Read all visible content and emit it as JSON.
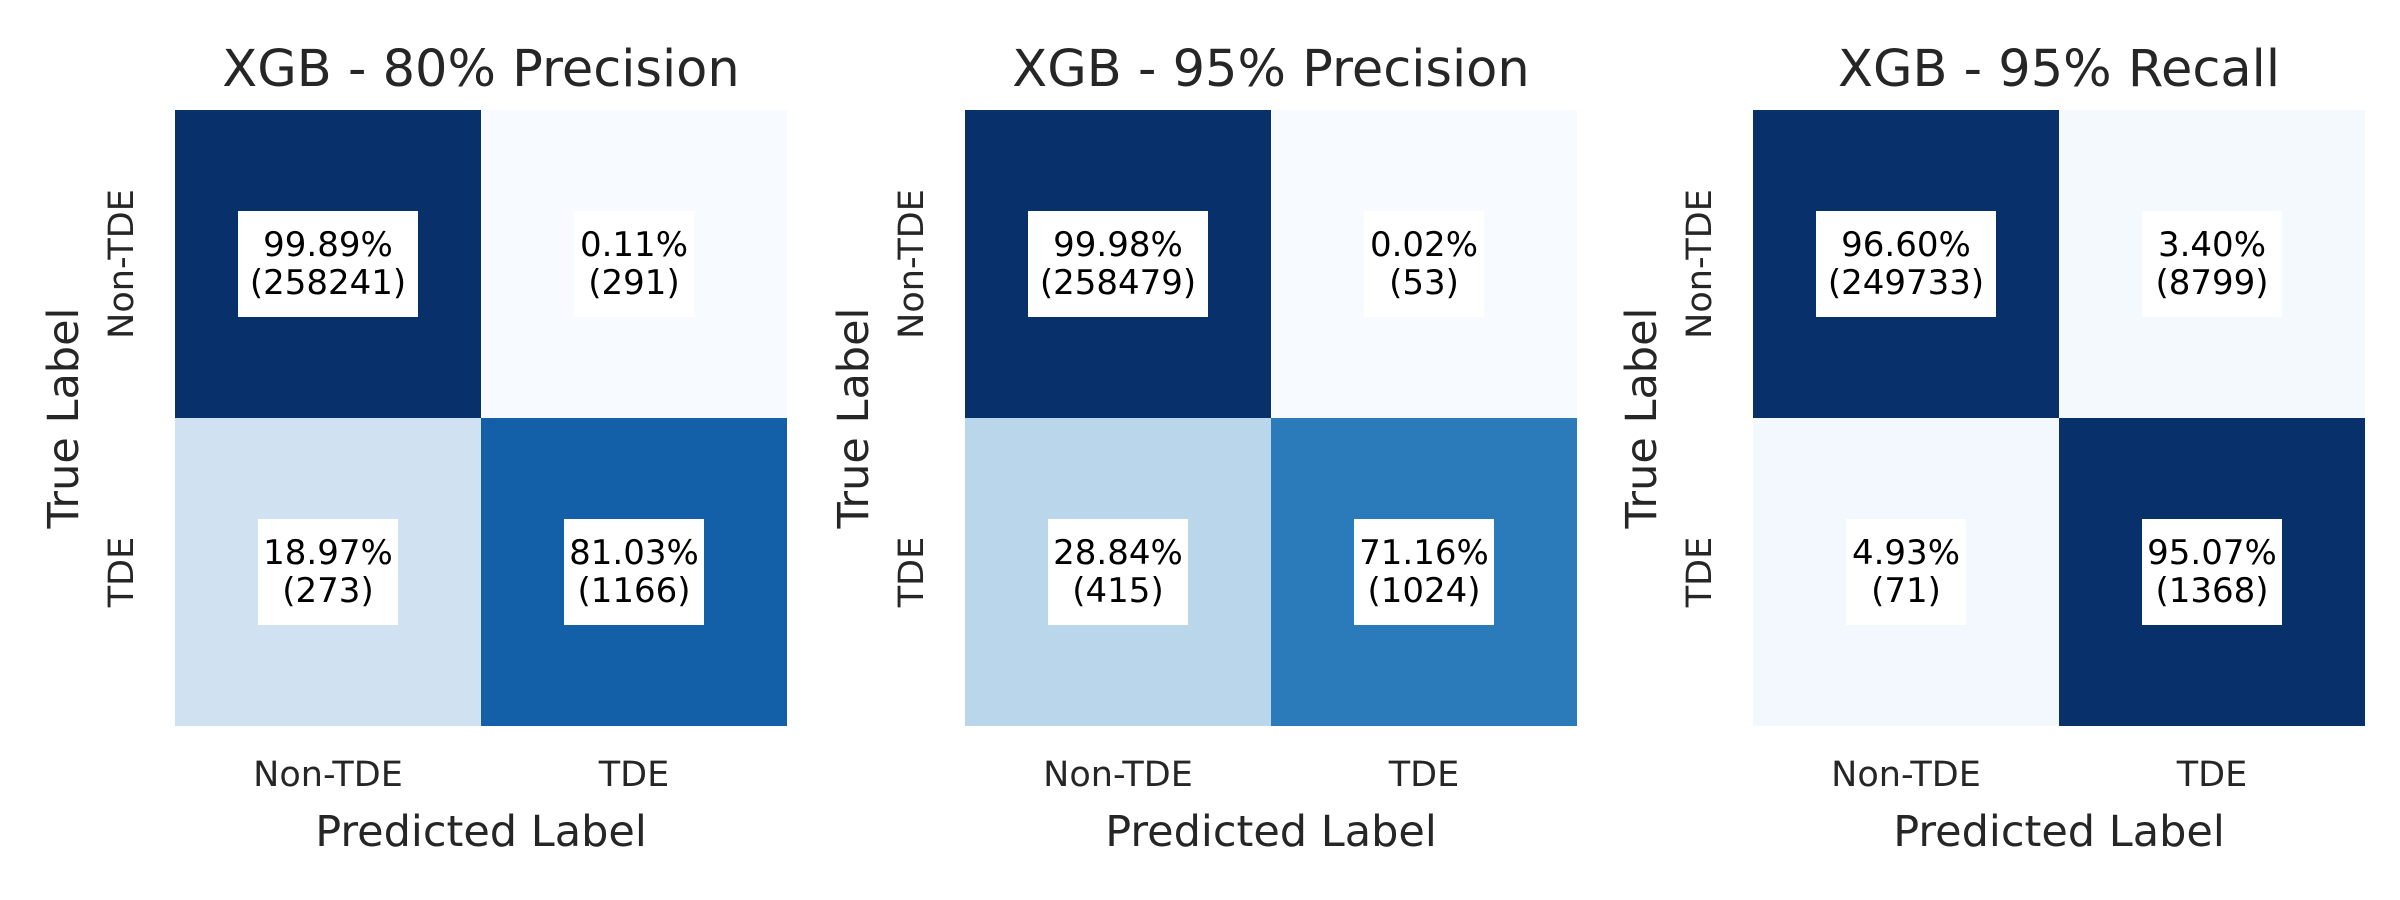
{
  "chart_data": [
    {
      "type": "heatmap",
      "title": "XGB - 80% Precision",
      "xlabel": "Predicted Label",
      "ylabel": "True Label",
      "x_categories": [
        "Non-TDE",
        "TDE"
      ],
      "y_categories": [
        "Non-TDE",
        "TDE"
      ],
      "values_pct": [
        [
          99.89,
          0.11
        ],
        [
          18.97,
          81.03
        ]
      ],
      "counts": [
        [
          258241,
          291
        ],
        [
          273,
          1166
        ]
      ],
      "labels": [
        [
          "99.89%",
          "(258241)",
          "0.11%",
          "(291)"
        ],
        [
          "18.97%",
          "(273)",
          "81.03%",
          "(1166)"
        ]
      ],
      "colors": [
        [
          "#08306b",
          "#f7fbff"
        ],
        [
          "#d0e1f2",
          "#1460a8"
        ]
      ],
      "colormap": "Blues"
    },
    {
      "type": "heatmap",
      "title": "XGB - 95% Precision",
      "xlabel": "Predicted Label",
      "ylabel": "True Label",
      "x_categories": [
        "Non-TDE",
        "TDE"
      ],
      "y_categories": [
        "Non-TDE",
        "TDE"
      ],
      "values_pct": [
        [
          99.98,
          0.02
        ],
        [
          28.84,
          71.16
        ]
      ],
      "counts": [
        [
          258479,
          53
        ],
        [
          415,
          1024
        ]
      ],
      "labels": [
        [
          "99.98%",
          "(258479)",
          "0.02%",
          "(53)"
        ],
        [
          "28.84%",
          "(415)",
          "71.16%",
          "(1024)"
        ]
      ],
      "colors": [
        [
          "#08306b",
          "#f7fbff"
        ],
        [
          "#bad6eb",
          "#2b7bba"
        ]
      ],
      "colormap": "Blues"
    },
    {
      "type": "heatmap",
      "title": "XGB - 95% Recall",
      "xlabel": "Predicted Label",
      "ylabel": "True Label",
      "x_categories": [
        "Non-TDE",
        "TDE"
      ],
      "y_categories": [
        "Non-TDE",
        "TDE"
      ],
      "values_pct": [
        [
          96.6,
          3.4
        ],
        [
          4.93,
          95.07
        ]
      ],
      "counts": [
        [
          249733,
          8799
        ],
        [
          71,
          1368
        ]
      ],
      "labels": [
        [
          "96.60%",
          "(249733)",
          "3.40%",
          "(8799)"
        ],
        [
          "4.93%",
          "(71)",
          "95.07%",
          "(1368)"
        ]
      ],
      "colors": [
        [
          "#08306b",
          "#f4f9fe"
        ],
        [
          "#f3f8fe",
          "#08306b"
        ]
      ],
      "colormap": "Blues"
    }
  ]
}
